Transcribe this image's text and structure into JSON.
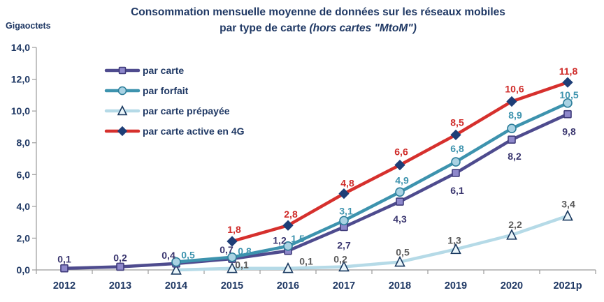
{
  "header": {
    "title_line1": "Consommation mensuelle moyenne de données sur les réseaux mobiles",
    "title_line2_normal": "par type de carte ",
    "title_line2_italic": "(hors cartes \"MtoM\")",
    "unit_label": "Gigaoctets"
  },
  "colors": {
    "title_navy": "#1F3864",
    "axis_gray": "#9B9B9B",
    "tick_label_navy": "#1F3864"
  },
  "chart_data": {
    "type": "line",
    "title": "Consommation mensuelle moyenne de données sur les réseaux mobiles par type de carte (hors cartes \"MtoM\")",
    "ylabel": "Gigaoctets",
    "ylim": [
      0,
      14
    ],
    "ytick_step": 2,
    "ytick_labels": [
      "0,0",
      "2,0",
      "4,0",
      "6,0",
      "8,0",
      "10,0",
      "12,0",
      "14,0"
    ],
    "grid": false,
    "legend_position": "top-left-inside",
    "categories": [
      "2012",
      "2013",
      "2014",
      "2015",
      "2016",
      "2017",
      "2018",
      "2019",
      "2020",
      "2021p"
    ],
    "series": [
      {
        "name": "par carte",
        "marker": "square",
        "line_color": "#4E4B8E",
        "marker_fill": "#8E88CB",
        "marker_stroke": "#3F3B7A",
        "label_color": "#3A366F",
        "start_index": 0,
        "values": [
          0.1,
          0.2,
          0.4,
          0.7,
          1.2,
          2.7,
          4.3,
          6.1,
          8.2,
          9.8
        ],
        "labels": [
          "0,1",
          "0,2",
          "0,4",
          "0,7",
          "1,2",
          "2,7",
          "4,3",
          "6,1",
          "8,2",
          "9,8"
        ]
      },
      {
        "name": "par forfait",
        "marker": "circle",
        "line_color": "#3D93AE",
        "marker_fill": "#A9D2E3",
        "marker_stroke": "#2E7F9B",
        "label_color": "#3D93AE",
        "start_index": 2,
        "values": [
          0.5,
          0.8,
          1.5,
          3.1,
          4.9,
          6.8,
          8.9,
          10.5
        ],
        "labels": [
          "0,5",
          "0,8",
          "1,5",
          "3,1",
          "4,9",
          "6,8",
          "8,9",
          "10,5"
        ]
      },
      {
        "name": "par carte prépayée",
        "marker": "triangle",
        "line_color": "#B5DAE7",
        "marker_fill": "#EAF5F9",
        "marker_stroke": "#17375E",
        "label_color": "#5A5A5A",
        "start_index": 2,
        "values": [
          0.0,
          0.1,
          0.1,
          0.2,
          0.5,
          1.3,
          2.2,
          3.4
        ],
        "labels": [
          null,
          "0,1",
          "0,1",
          "0,2",
          "0,5",
          "1,3",
          "2,2",
          "3,4"
        ]
      },
      {
        "name": "par carte active en 4G",
        "marker": "diamond",
        "line_color": "#D6302D",
        "marker_fill": "#1E3E77",
        "marker_stroke": "#1E3E77",
        "label_color": "#CF2A28",
        "start_index": 3,
        "values": [
          1.8,
          2.8,
          4.8,
          6.6,
          8.5,
          10.6,
          11.8
        ],
        "labels": [
          "1,8",
          "2,8",
          "4,8",
          "6,6",
          "8,5",
          "10,6",
          "11,8"
        ]
      }
    ]
  }
}
